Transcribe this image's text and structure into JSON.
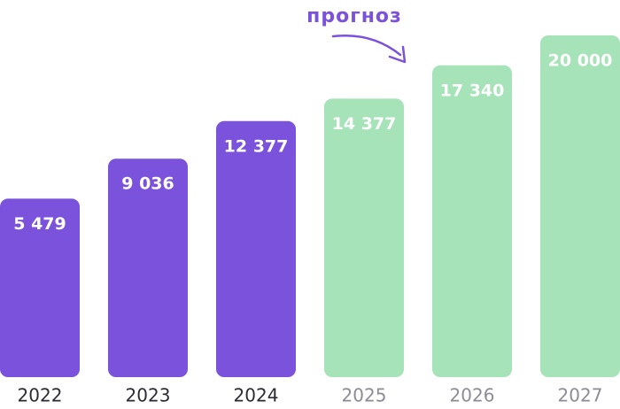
{
  "chart_data": {
    "type": "bar",
    "annotation": "прогноз",
    "categories": [
      "2022",
      "2023",
      "2024",
      "2025",
      "2026",
      "2027"
    ],
    "values": [
      5479,
      9036,
      12377,
      14377,
      17340,
      20000
    ],
    "value_labels": [
      "5 479",
      "9 036",
      "12 377",
      "14 377",
      "17 340",
      "20 000"
    ],
    "colors": [
      "#7b52db",
      "#7b52db",
      "#7b52db",
      "#a6e3b8",
      "#a6e3b8",
      "#a6e3b8"
    ],
    "category_colors": [
      "#2b2b33",
      "#2b2b33",
      "#2b2b33",
      "#8c8c96",
      "#8c8c96",
      "#8c8c96"
    ]
  }
}
